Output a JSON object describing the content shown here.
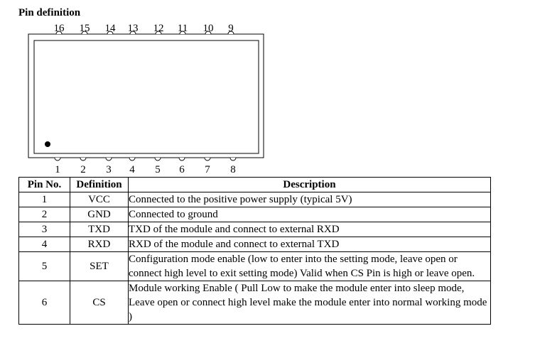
{
  "section_title": "Pin definition",
  "top_pins": [
    "16",
    "15",
    "14",
    "13",
    "12",
    "11",
    "10",
    "9"
  ],
  "bottom_pins": [
    "1",
    "2",
    "3",
    "4",
    "5",
    "6",
    "7",
    "8"
  ],
  "table": {
    "headers": {
      "pin_no": "Pin No.",
      "definition": "Definition",
      "description": "Description"
    },
    "rows": [
      {
        "pin": "1",
        "definition": "VCC",
        "description": "Connected to the positive power supply (typical 5V)"
      },
      {
        "pin": "2",
        "definition": "GND",
        "description": "Connected to ground"
      },
      {
        "pin": "3",
        "definition": "TXD",
        "description": "TXD of the module and connect to external RXD"
      },
      {
        "pin": "4",
        "definition": "RXD",
        "description": "RXD of the module and connect to external TXD"
      },
      {
        "pin": "5",
        "definition": "SET",
        "description": "Configuration mode enable (low to enter into the setting mode, leave open or connect high level to exit setting mode) Valid when CS Pin is high or leave open."
      },
      {
        "pin": "6",
        "definition": "CS",
        "description": "Module working Enable ( Pull Low to make the module enter into sleep mode, Leave open or connect high level make the module enter into normal working mode )"
      }
    ]
  }
}
